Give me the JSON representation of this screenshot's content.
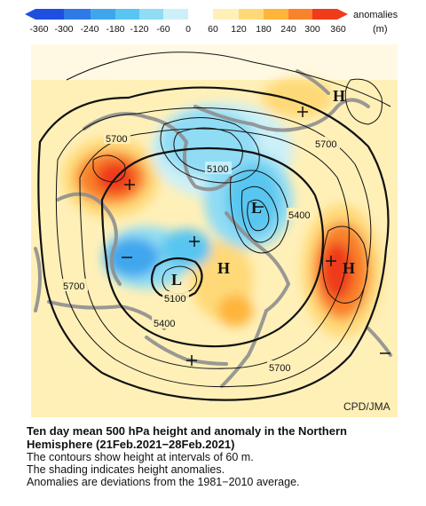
{
  "colorbar": {
    "ticks": [
      "-360",
      "-300",
      "-240",
      "-180",
      "-120",
      "-60",
      "0",
      "60",
      "120",
      "180",
      "240",
      "300",
      "360"
    ],
    "legend_line1": "anomalies",
    "legend_line2": "(m)",
    "colors": [
      "#1f4fe0",
      "#2f7ae6",
      "#3fa6ee",
      "#58c6f0",
      "#8fdcf4",
      "#ccf0f8",
      "#fff0b8",
      "#ffd978",
      "#ffb43a",
      "#f9822b",
      "#ef3b1a"
    ]
  },
  "map": {
    "contour_labels": [
      "5700",
      "5100",
      "5400",
      "5700",
      "5100",
      "5400",
      "5700",
      "5700"
    ],
    "high_markers": [
      "H",
      "H",
      "H"
    ],
    "low_markers": [
      "L",
      "L"
    ],
    "credit": "CPD/JMA",
    "colors": {
      "land": "#8f8f8f",
      "contour": "#111111",
      "ocean_bg": "#fff0b8"
    }
  },
  "caption": {
    "title_line1": "Ten day mean 500 hPa height and anomaly in the Northern",
    "title_line2": "Hemisphere (21Feb.2021−28Feb.2021)",
    "line1": "The contours show height at intervals of 60 m.",
    "line2": "The shading indicates height anomalies.",
    "line3": "Anomalies are deviations from the 1981−2010 average."
  }
}
